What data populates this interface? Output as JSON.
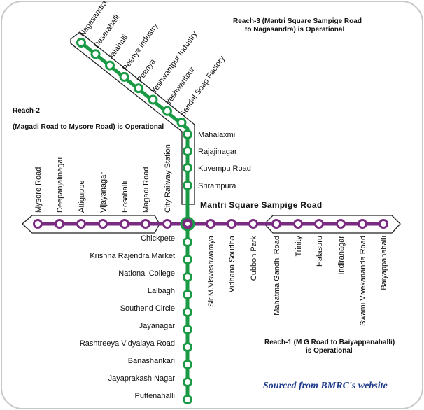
{
  "map": {
    "colors": {
      "green": "#1b9a45",
      "purple": "#7b2a82",
      "station_fill": "#ffffff",
      "border": "#222222"
    },
    "interchange": "Mantri Square Sampige Road",
    "notes": {
      "reach3": [
        "Reach-3 (Mantri Square Sampige Road",
        "to Nagasandra) is Operational"
      ],
      "reach2_title": "Reach-2",
      "reach2_body": "(Magadi Road to Mysore Road) is Operational",
      "reach1": [
        "Reach-1 (M G Road to Baiyappanahalli)",
        "is Operational"
      ]
    },
    "credit": "Sourced from BMRC's website",
    "green_line": {
      "diagonal": [
        "Nagasandra",
        "Dasarahalli",
        "Jalahalli",
        "Peenya Industry",
        "Peenya",
        "Yeshwantpur Industry",
        "Yeshwantpur",
        "Sandal Soap Factory"
      ],
      "north": [
        "Mahalaxmi",
        "Rajajinagar",
        "Kuvempu Road",
        "Srirampura"
      ],
      "south": [
        "Chickpete",
        "Krishna Rajendra Market",
        "National College",
        "Lalbagh",
        "Southend Circle",
        "Jayanagar",
        "Rashtreeya Vidyalaya Road",
        "Banashankari",
        "Jayaprakash Nagar",
        "Puttenahalli"
      ]
    },
    "purple_line": {
      "west": [
        "Mysore Road",
        "Deepanjalinagar",
        "Attiguppe",
        "Vijayanagar",
        "Hosahalli",
        "Magadi Road",
        "City Railway Station"
      ],
      "east": [
        "Sir.M.Visveshwaraya",
        "Vidhana Soudha",
        "Cubbon Park",
        "Mahatma Gandhi Road",
        "Trinity",
        "Halasuru",
        "Indiranagar",
        "Swami Vivekananda Road",
        "Baiyappanahalli"
      ]
    }
  }
}
